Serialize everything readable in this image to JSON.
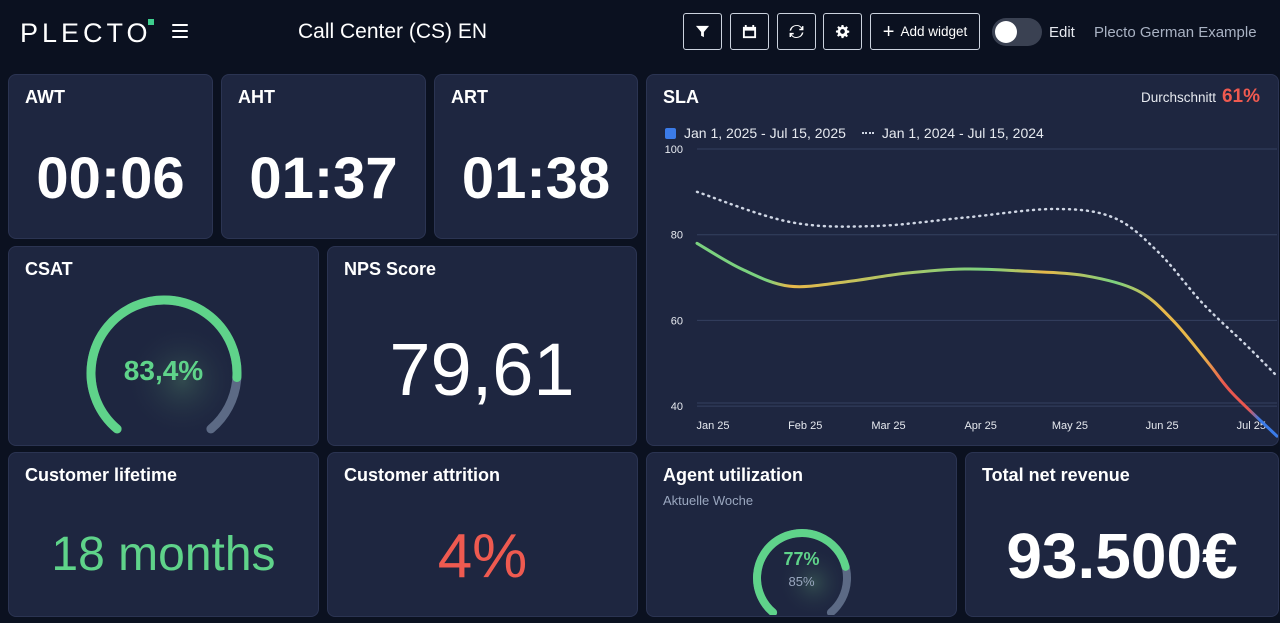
{
  "header": {
    "logo": "PLECTO",
    "title": "Call Center (CS) EN",
    "add_widget_label": "Add widget",
    "edit_label": "Edit",
    "edit_enabled": false,
    "account_name": "Plecto German Example",
    "icons": {
      "menu": "hamburger-menu-icon",
      "filter": "filter-icon",
      "calendar": "calendar-icon",
      "refresh": "refresh-icon",
      "settings": "gear-icon",
      "add": "plus-icon"
    }
  },
  "widgets": {
    "awt": {
      "title": "AWT",
      "value": "00:06"
    },
    "aht": {
      "title": "AHT",
      "value": "01:37"
    },
    "art": {
      "title": "ART",
      "value": "01:38"
    },
    "csat": {
      "title": "CSAT",
      "value": "83,4%",
      "fraction": 0.834,
      "color": "#5fd38a"
    },
    "nps": {
      "title": "NPS Score",
      "value": "79,61"
    },
    "lifetime": {
      "title": "Customer lifetime",
      "value": "18 months",
      "color": "#5fd38a"
    },
    "attrition": {
      "title": "Customer attrition",
      "value": "4%",
      "color": "#ef5a50"
    },
    "utilization": {
      "title": "Agent utilization",
      "subtitle": "Aktuelle Woche",
      "value": "77%",
      "target": "85%",
      "fraction": 0.77,
      "target_fraction": 0.85,
      "color": "#5fd38a"
    },
    "revenue": {
      "title": "Total net revenue",
      "value": "93.500€"
    }
  },
  "sla": {
    "title": "SLA",
    "avg_label": "Durchschnitt",
    "avg_value": "61%",
    "legend_current": "Jan 1, 2025 - Jul 15, 2025",
    "legend_previous": "Jan 1, 2024 - Jul 15, 2024",
    "colors": {
      "green": "#7bd17f",
      "yellow": "#e8b84a",
      "red": "#e9574f",
      "blue": "#3b7be8",
      "previous": "#cfd6e4"
    }
  },
  "chart_data": {
    "type": "line",
    "title": "SLA",
    "ylim": [
      30,
      100
    ],
    "yticks": [
      100,
      80,
      60,
      40
    ],
    "xticks": [
      {
        "label": "Jan 25",
        "x": 0
      },
      {
        "label": "Feb 25",
        "x": 31
      },
      {
        "label": "Mar 25",
        "x": 59
      },
      {
        "label": "Apr 25",
        "x": 90
      },
      {
        "label": "May 25",
        "x": 120
      },
      {
        "label": "Jun 25",
        "x": 151
      },
      {
        "label": "Jul 25",
        "x": 181
      }
    ],
    "series": [
      {
        "name": "Jan 1, 2025 - Jul 15, 2025",
        "style": "solid",
        "points": [
          [
            0,
            78
          ],
          [
            15,
            72
          ],
          [
            31,
            68
          ],
          [
            50,
            69
          ],
          [
            70,
            71
          ],
          [
            90,
            72
          ],
          [
            110,
            71.5
          ],
          [
            130,
            70.5
          ],
          [
            148,
            67
          ],
          [
            160,
            60
          ],
          [
            172,
            50
          ],
          [
            180,
            43
          ],
          [
            195,
            33
          ]
        ]
      },
      {
        "name": "Jan 1, 2024 - Jul 15, 2024",
        "style": "dotted",
        "points": [
          [
            0,
            90
          ],
          [
            31,
            83
          ],
          [
            59,
            82
          ],
          [
            90,
            84
          ],
          [
            120,
            86
          ],
          [
            140,
            84
          ],
          [
            155,
            76
          ],
          [
            170,
            64
          ],
          [
            185,
            54
          ],
          [
            195,
            47
          ]
        ]
      }
    ]
  }
}
